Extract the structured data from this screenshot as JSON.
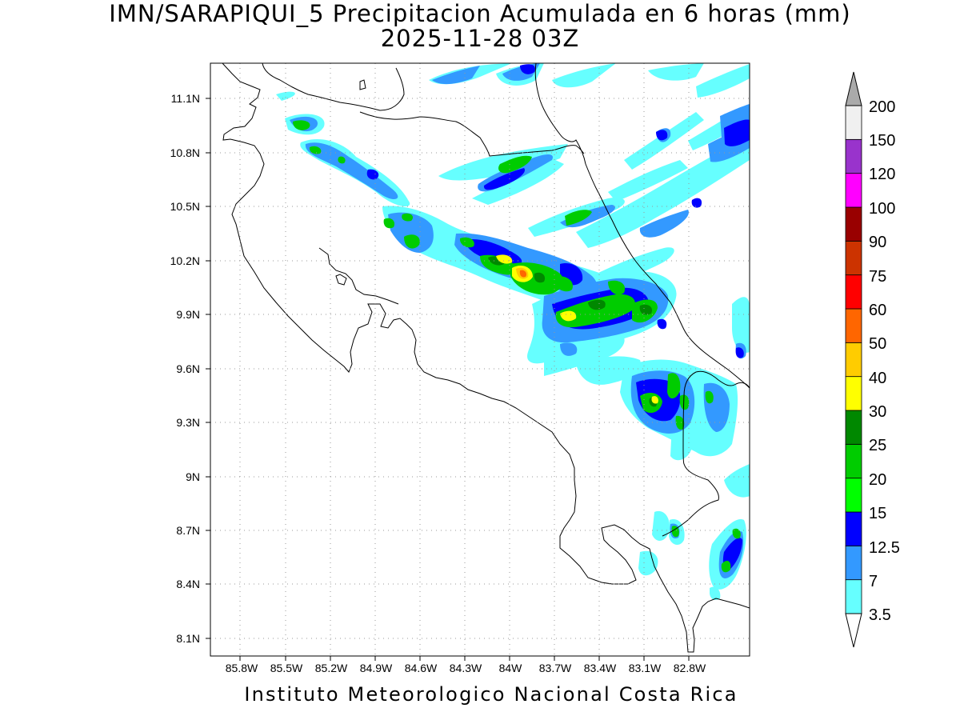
{
  "title": {
    "line1": "IMN/SARAPIQUI_5 Precipitacion Acumulada en 6 horas (mm)",
    "line2": "2025-11-28 03Z"
  },
  "footer": "Instituto Meteorologico Nacional Costa Rica",
  "axes": {
    "lat_ticks": [
      "11.1N",
      "10.8N",
      "10.5N",
      "10.2N",
      "9.9N",
      "9.6N",
      "9.3N",
      "9N",
      "8.7N",
      "8.4N",
      "8.1N"
    ],
    "lon_ticks": [
      "85.8W",
      "85.5W",
      "85.2W",
      "84.9W",
      "84.6W",
      "84.3W",
      "84W",
      "83.7W",
      "83.4W",
      "83.1W",
      "82.8W"
    ],
    "lat_range": [
      8.0,
      11.3
    ],
    "lon_range": [
      -86.0,
      -83.0
    ],
    "grid": "dotted"
  },
  "colorbar": {
    "labels": [
      "3.5",
      "7",
      "12.5",
      "15",
      "20",
      "25",
      "30",
      "40",
      "50",
      "60",
      "75",
      "90",
      "100",
      "120",
      "150",
      "200"
    ],
    "colors": [
      "#66ffff",
      "#3399ff",
      "#0000ff",
      "#00ff00",
      "#00cc00",
      "#008800",
      "#ffff00",
      "#ffcc00",
      "#ff6600",
      "#ff0000",
      "#cc3300",
      "#990000",
      "#ff00ff",
      "#9933cc",
      "#f0f0f0",
      "#aaaaaa"
    ],
    "extend": "both"
  },
  "icons": {
    "top_arrow": "triangle-up-icon",
    "bottom_arrow": "triangle-down-icon"
  }
}
